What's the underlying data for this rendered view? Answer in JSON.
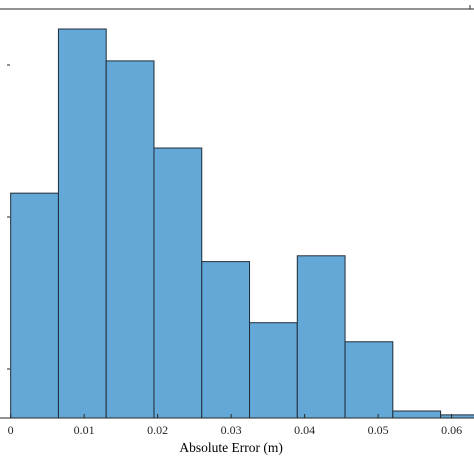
{
  "chart_data": {
    "type": "bar",
    "subtype": "histogram",
    "xlabel": "Absolute Error (m)",
    "ylabel": "",
    "title": "",
    "xlim": [
      -0.0005,
      0.0625
    ],
    "ylim": [
      0,
      1
    ],
    "xticks": [
      0,
      0.01,
      0.02,
      0.03,
      0.04,
      0.05,
      0.06
    ],
    "xtick_labels": [
      "0",
      "0.01",
      "0.02",
      "0.03",
      "0.04",
      "0.05",
      "0.06"
    ],
    "bin_edges": [
      0.0,
      0.0065,
      0.013,
      0.0195,
      0.026,
      0.0325,
      0.039,
      0.0455,
      0.052,
      0.0585,
      0.065
    ],
    "values": [
      0.578,
      1.0,
      0.918,
      0.694,
      0.402,
      0.245,
      0.417,
      0.196,
      0.018,
      0.008
    ],
    "colors": {
      "bar_fill": "#64a8d7",
      "bar_stroke": "#1f2c38",
      "axis": "#262626"
    },
    "grid": false,
    "legend": "none"
  }
}
